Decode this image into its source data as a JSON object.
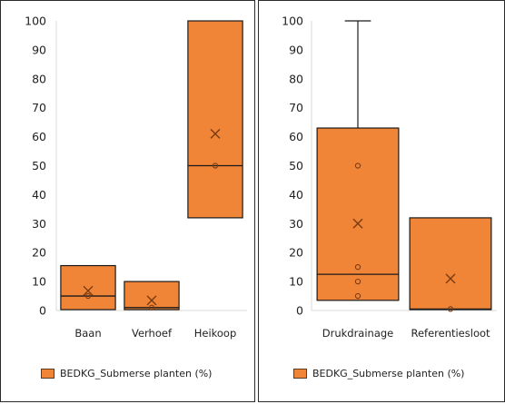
{
  "colors": {
    "box_fill": "#f08537",
    "box_stroke": "#1a1a1a",
    "marker": "#7a3b12",
    "axis": "#d9d9d9"
  },
  "chart_data": [
    {
      "type": "box",
      "ylim": [
        0,
        100
      ],
      "yticks": [
        "0",
        "10",
        "20",
        "30",
        "40",
        "50",
        "60",
        "70",
        "80",
        "90",
        "100"
      ],
      "categories": [
        "Baan",
        "Verhoef",
        "Heikoop"
      ],
      "boxes": [
        {
          "category": "Baan",
          "min": 0.3,
          "q1": 0.3,
          "median": 5,
          "q3": 15.5,
          "max": 15.5,
          "mean": 6.8,
          "points": [
            5
          ]
        },
        {
          "category": "Verhoef",
          "min": 0.3,
          "q1": 0.3,
          "median": 1,
          "q3": 10,
          "max": 10,
          "mean": 3.5,
          "points": [
            1
          ]
        },
        {
          "category": "Heikoop",
          "min": 32,
          "q1": 32,
          "median": 50,
          "q3": 100,
          "max": 100,
          "mean": 61,
          "points": [
            50
          ]
        }
      ],
      "legend": "BEDKG_Submerse planten (%)",
      "grid": false
    },
    {
      "type": "box",
      "ylim": [
        0,
        100
      ],
      "yticks": [
        "0",
        "10",
        "20",
        "30",
        "40",
        "50",
        "60",
        "70",
        "80",
        "90",
        "100"
      ],
      "categories": [
        "Drukdrainage",
        "Referentiesloot"
      ],
      "boxes": [
        {
          "category": "Drukdrainage",
          "min": 3.5,
          "q1": 3.5,
          "median": 12.5,
          "q3": 63,
          "max": 100,
          "mean": 30,
          "points": [
            5,
            10,
            15,
            50
          ]
        },
        {
          "category": "Referentiesloot",
          "min": 0.3,
          "q1": 0.3,
          "median": 0.5,
          "q3": 32,
          "max": 32,
          "mean": 11,
          "points": [
            0.5
          ]
        }
      ],
      "legend": "BEDKG_Submerse planten (%)",
      "grid": false
    }
  ]
}
